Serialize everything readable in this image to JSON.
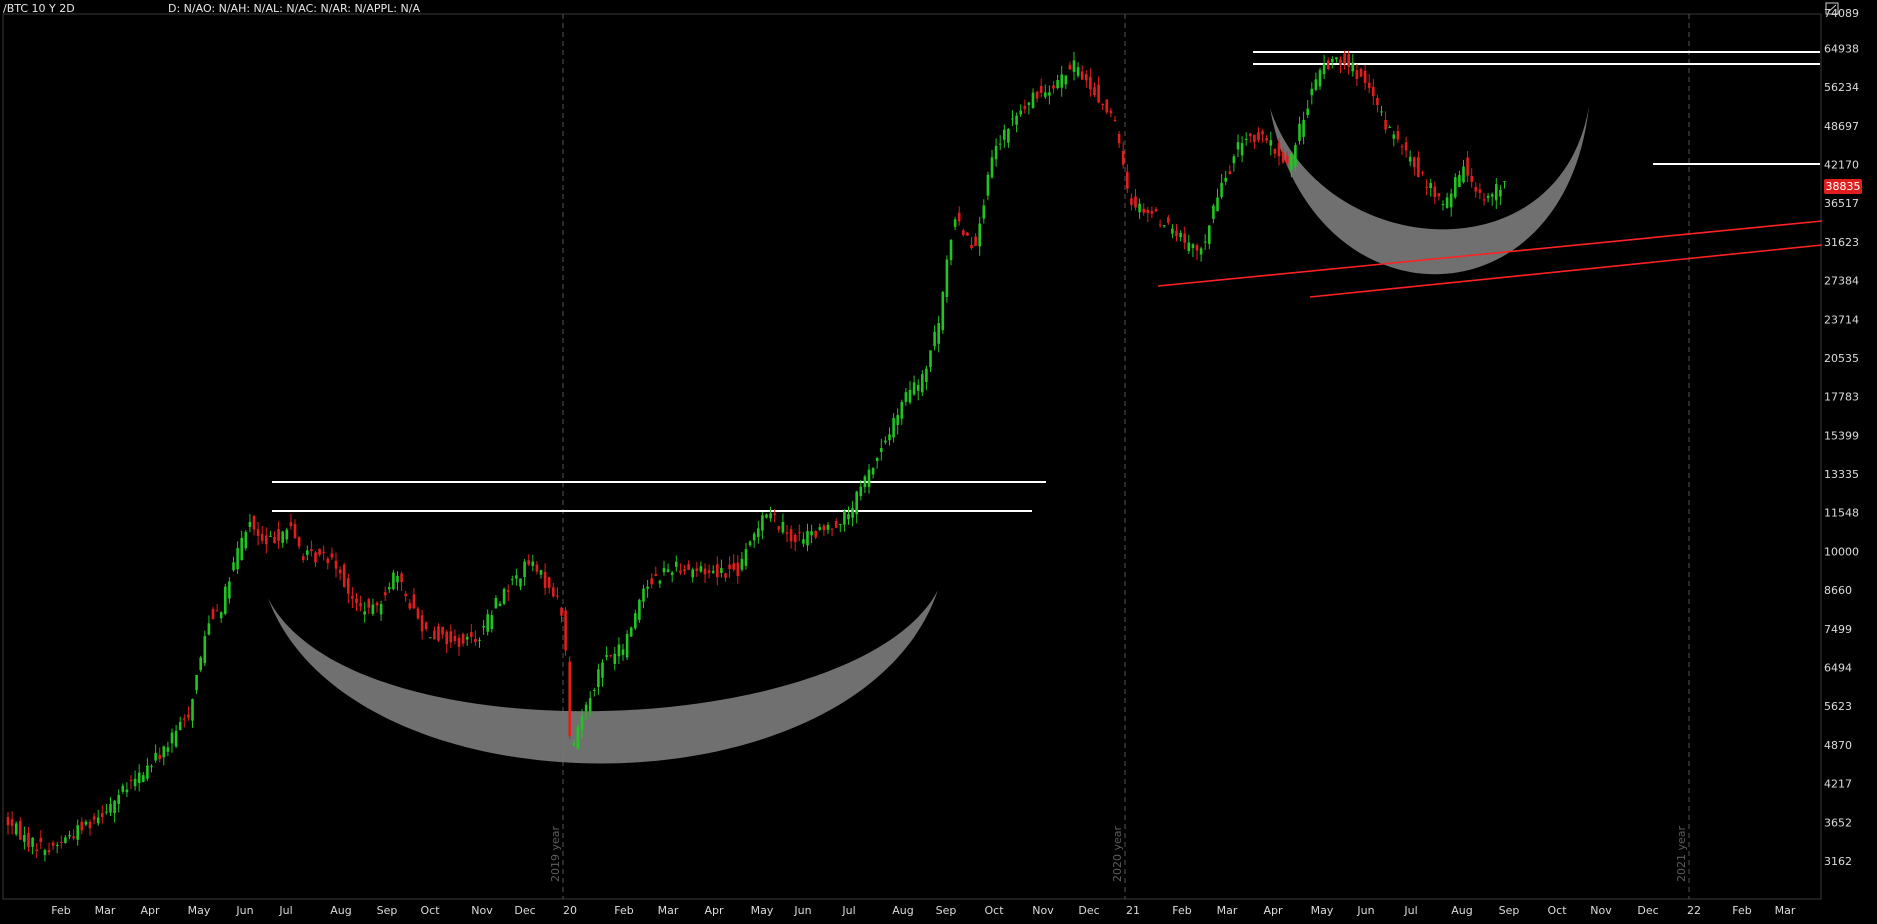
{
  "header": {
    "symbol": "/BTC 10 Y 2D",
    "indicators": "D: N/AO: N/AH: N/AL: N/AC: N/AR: N/APPL: N/A"
  },
  "colors": {
    "up": "#22c422",
    "down": "#e01e1e",
    "background": "#000000",
    "price_tag": "#e01e1e",
    "pattern_fill": "#7a7a7a",
    "resistance_line": "#ffffff",
    "trend_line": "#ff2222"
  },
  "price_tag": {
    "value": "38835"
  },
  "chart_data": {
    "type": "candlestick",
    "scale": "log",
    "y_ticks": [
      74089,
      64938,
      56234,
      48697,
      42170,
      36517,
      31623,
      27384,
      23714,
      20535,
      17783,
      15399,
      13335,
      11548,
      10000,
      8660,
      7499,
      6494,
      5623,
      4870,
      4217,
      3652,
      3162
    ],
    "x_ticks": [
      "Feb",
      "Mar",
      "Apr",
      "May",
      "Jun",
      "Jul",
      "Aug",
      "Sep",
      "Oct",
      "Nov",
      "Dec",
      "20",
      "Feb",
      "Mar",
      "Apr",
      "May",
      "Jun",
      "Jul",
      "Aug",
      "Sep",
      "Oct",
      "Nov",
      "Dec",
      "21",
      "Feb",
      "Mar",
      "Apr",
      "May",
      "Jun",
      "Jul",
      "Aug",
      "Sep",
      "Oct",
      "Nov",
      "Dec",
      "22",
      "Feb",
      "Mar"
    ],
    "year_markers": [
      "2019 year",
      "2020 year",
      "2021 year"
    ],
    "last_price": 38835,
    "anchors": [
      {
        "t": 0,
        "p": 3700
      },
      {
        "t": 25,
        "p": 3400
      },
      {
        "t": 45,
        "p": 3300
      },
      {
        "t": 90,
        "p": 3700
      },
      {
        "t": 120,
        "p": 4100
      },
      {
        "t": 145,
        "p": 4500
      },
      {
        "t": 165,
        "p": 4900
      },
      {
        "t": 185,
        "p": 5500
      },
      {
        "t": 205,
        "p": 7800
      },
      {
        "t": 218,
        "p": 8200
      },
      {
        "t": 232,
        "p": 9800
      },
      {
        "t": 245,
        "p": 11200
      },
      {
        "t": 260,
        "p": 10200
      },
      {
        "t": 285,
        "p": 11000
      },
      {
        "t": 300,
        "p": 9800
      },
      {
        "t": 330,
        "p": 9800
      },
      {
        "t": 350,
        "p": 8200
      },
      {
        "t": 370,
        "p": 8000
      },
      {
        "t": 390,
        "p": 9200
      },
      {
        "t": 420,
        "p": 7500
      },
      {
        "t": 450,
        "p": 7100
      },
      {
        "t": 475,
        "p": 7300
      },
      {
        "t": 495,
        "p": 8400
      },
      {
        "t": 525,
        "p": 9600
      },
      {
        "t": 550,
        "p": 8600
      },
      {
        "t": 560,
        "p": 7800
      },
      {
        "t": 567,
        "p": 4600
      },
      {
        "t": 575,
        "p": 5300
      },
      {
        "t": 600,
        "p": 6700
      },
      {
        "t": 620,
        "p": 7000
      },
      {
        "t": 640,
        "p": 8800
      },
      {
        "t": 670,
        "p": 9500
      },
      {
        "t": 700,
        "p": 9300
      },
      {
        "t": 735,
        "p": 9300
      },
      {
        "t": 760,
        "p": 11700
      },
      {
        "t": 790,
        "p": 10500
      },
      {
        "t": 815,
        "p": 10700
      },
      {
        "t": 845,
        "p": 11500
      },
      {
        "t": 865,
        "p": 13400
      },
      {
        "t": 885,
        "p": 15500
      },
      {
        "t": 905,
        "p": 18200
      },
      {
        "t": 918,
        "p": 18800
      },
      {
        "t": 935,
        "p": 23500
      },
      {
        "t": 950,
        "p": 35000
      },
      {
        "t": 970,
        "p": 31000
      },
      {
        "t": 990,
        "p": 44000
      },
      {
        "t": 1010,
        "p": 50000
      },
      {
        "t": 1035,
        "p": 55000
      },
      {
        "t": 1055,
        "p": 58000
      },
      {
        "t": 1072,
        "p": 61000
      },
      {
        "t": 1090,
        "p": 55000
      },
      {
        "t": 1110,
        "p": 50000
      },
      {
        "t": 1125,
        "p": 37000
      },
      {
        "t": 1150,
        "p": 35000
      },
      {
        "t": 1170,
        "p": 33000
      },
      {
        "t": 1195,
        "p": 30000
      },
      {
        "t": 1215,
        "p": 38000
      },
      {
        "t": 1240,
        "p": 47000
      },
      {
        "t": 1262,
        "p": 46000
      },
      {
        "t": 1285,
        "p": 42000
      },
      {
        "t": 1305,
        "p": 54000
      },
      {
        "t": 1320,
        "p": 61000
      },
      {
        "t": 1340,
        "p": 63000
      },
      {
        "t": 1360,
        "p": 57000
      },
      {
        "t": 1385,
        "p": 48000
      },
      {
        "t": 1410,
        "p": 42000
      },
      {
        "t": 1440,
        "p": 36000
      },
      {
        "t": 1460,
        "p": 42000
      },
      {
        "t": 1480,
        "p": 37000
      },
      {
        "t": 1498,
        "p": 38835
      }
    ]
  }
}
